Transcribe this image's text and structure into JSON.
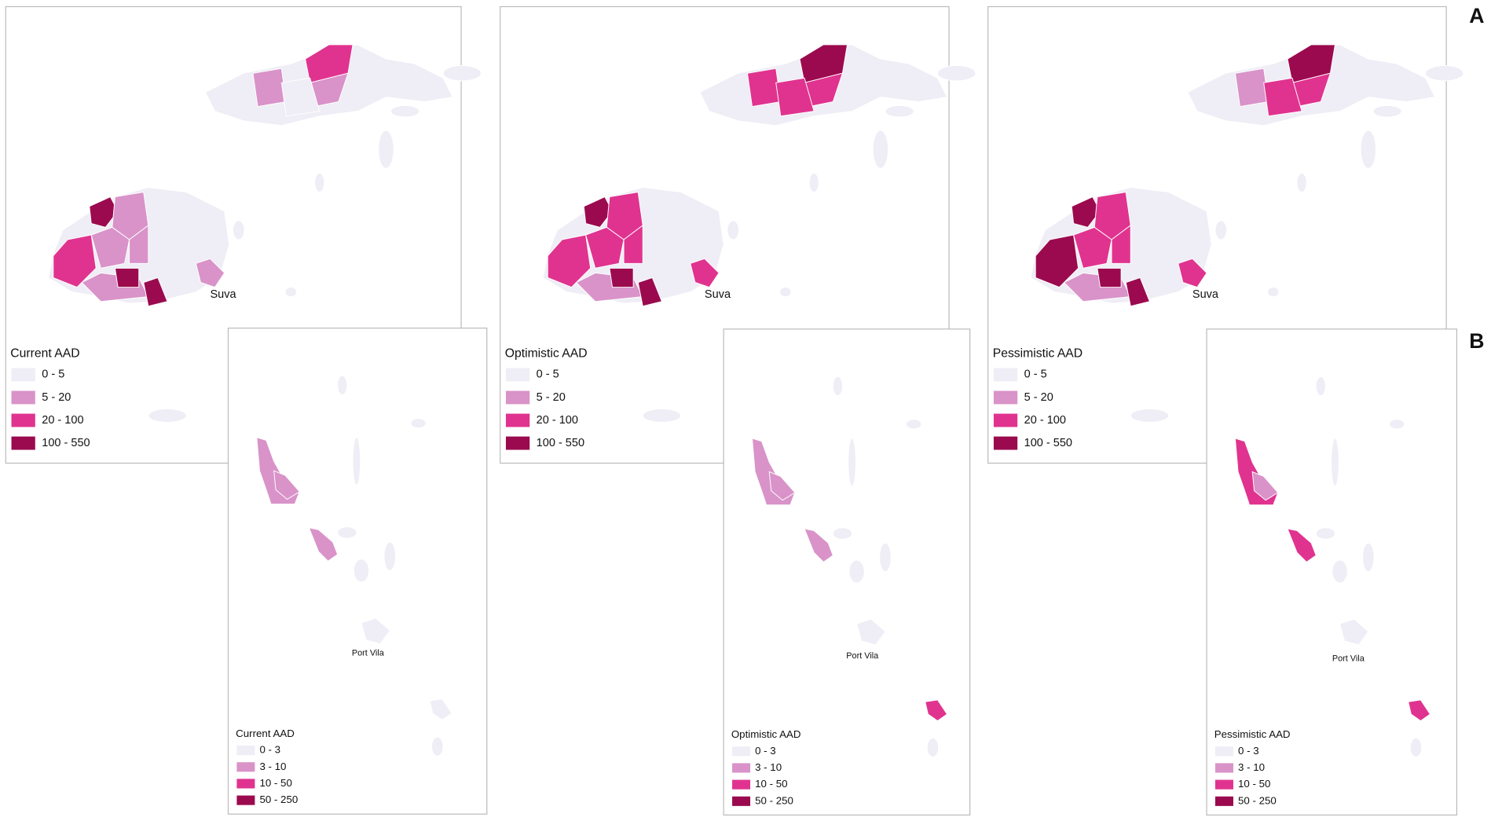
{
  "labels": {
    "a": "A",
    "b": "B"
  },
  "colors": [
    "#efedf5",
    "#d993c9",
    "#e0338f",
    "#9b0a4f"
  ],
  "fiji": [
    {
      "legend_title": "Current AAD",
      "city": "Suva",
      "classes": [
        "0 - 5",
        "5 - 20",
        "20 - 100",
        "100 - 550"
      ]
    },
    {
      "legend_title": "Optimistic AAD",
      "city": "Suva",
      "classes": [
        "0 - 5",
        "5 - 20",
        "20 - 100",
        "100 - 550"
      ]
    },
    {
      "legend_title": "Pessimistic AAD",
      "city": "Suva",
      "classes": [
        "0 - 5",
        "5 - 20",
        "20 - 100",
        "100 - 550"
      ]
    }
  ],
  "vanuatu": [
    {
      "legend_title": "Current AAD",
      "city": "Port Vila",
      "classes": [
        "0 - 3",
        "3 - 10",
        "10 - 50",
        "50 - 250"
      ]
    },
    {
      "legend_title": "Optimistic AAD",
      "city": "Port Vila",
      "classes": [
        "0 - 3",
        "3 - 10",
        "10 - 50",
        "50 - 250"
      ]
    },
    {
      "legend_title": "Pessimistic AAD",
      "city": "Port Vila",
      "classes": [
        "0 - 3",
        "3 - 10",
        "10 - 50",
        "50 - 250"
      ]
    }
  ]
}
